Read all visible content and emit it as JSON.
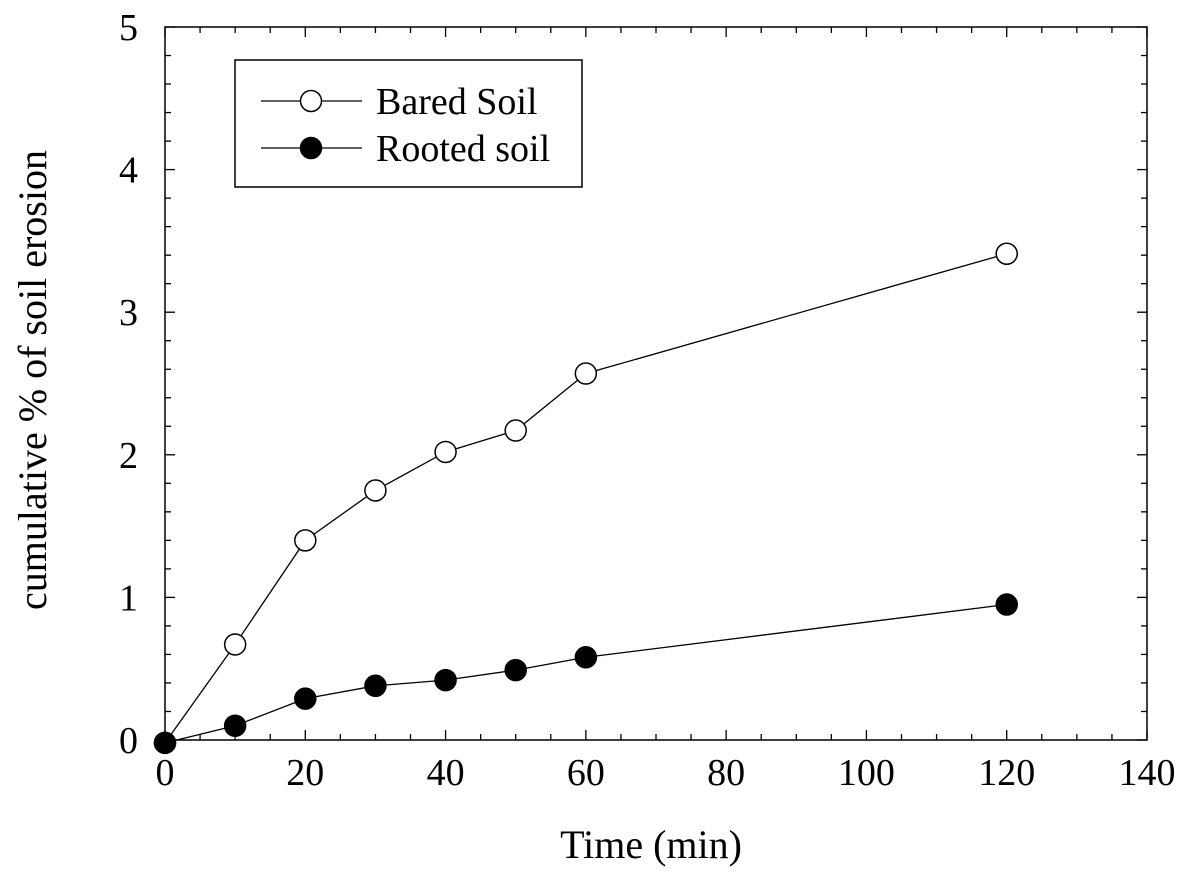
{
  "chart_data": {
    "type": "line",
    "title": "",
    "xlabel": "Time (min)",
    "ylabel": "cumulative % of soil erosion",
    "xlim": [
      0,
      140
    ],
    "ylim": [
      0,
      5
    ],
    "xticks": [
      0,
      20,
      40,
      60,
      80,
      100,
      120,
      140
    ],
    "yticks": [
      0,
      1,
      2,
      3,
      4,
      5
    ],
    "grid": false,
    "legend_position": "top-left",
    "series": [
      {
        "name": "Bared Soil",
        "marker": "open-circle",
        "color": "#000000",
        "x": [
          0,
          10,
          20,
          30,
          40,
          50,
          60,
          120
        ],
        "y": [
          -0.02,
          0.67,
          1.4,
          1.75,
          2.02,
          2.17,
          2.57,
          3.41
        ]
      },
      {
        "name": "Rooted soil",
        "marker": "filled-circle",
        "color": "#000000",
        "x": [
          0,
          10,
          20,
          30,
          40,
          50,
          60,
          120
        ],
        "y": [
          -0.02,
          0.1,
          0.29,
          0.38,
          0.42,
          0.49,
          0.58,
          0.95
        ]
      }
    ]
  }
}
